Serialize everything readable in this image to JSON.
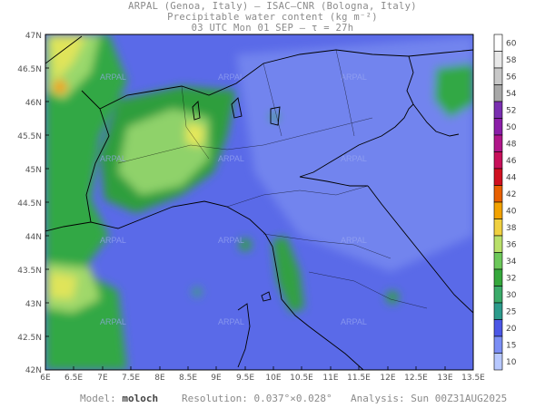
{
  "header": {
    "line1": "ARPAL (Genoa, Italy)  –  ISAC–CNR (Bologna, Italy)",
    "line2": "Precipitable water content (kg m⁻²)",
    "line3": "03 UTC Mon 01 SEP  –  τ = 27h"
  },
  "map": {
    "lat_labels": [
      "47N",
      "46.5N",
      "46N",
      "45.5N",
      "45N",
      "44.5N",
      "44N",
      "43.5N",
      "43N",
      "42.5N",
      "42N"
    ],
    "lon_labels": [
      "6E",
      "6.5E",
      "7E",
      "7.5E",
      "8E",
      "8.5E",
      "9E",
      "9.5E",
      "10E",
      "10.5E",
      "11E",
      "11.5E",
      "12E",
      "12.5E",
      "13E",
      "13.5E"
    ],
    "watermark": "ARPAL",
    "colors": {
      "low_blue": "#4b57e6",
      "mid_blue": "#6a7ef0",
      "green": "#2aa13a",
      "light_green": "#7fd06e",
      "yellow": "#e6e85a",
      "orange": "#f2a200"
    }
  },
  "colorbar": {
    "labels": [
      "60",
      "58",
      "56",
      "54",
      "52",
      "50",
      "48",
      "46",
      "44",
      "42",
      "40",
      "38",
      "36",
      "34",
      "32",
      "30",
      "25",
      "20",
      "15",
      "10"
    ],
    "colors": [
      "#ffffff",
      "#e8e8e8",
      "#c8c8c8",
      "#a8a8a8",
      "#7a2fb0",
      "#8b1ea8",
      "#b0168a",
      "#c8105a",
      "#d01020",
      "#e86000",
      "#f2a200",
      "#f0d040",
      "#b9e06a",
      "#6cc85a",
      "#35a83c",
      "#3bab6a",
      "#2c9b8c",
      "#4b57e6",
      "#7b8ef5",
      "#b7c8ff"
    ]
  },
  "footer": {
    "model_label": "Model:",
    "model_value": "moloch",
    "resolution_label": "Resolution:",
    "resolution_value": "0.037°×0.028°",
    "analysis_label": "Analysis:",
    "analysis_value": "Sun 00Z31AUG2025"
  }
}
